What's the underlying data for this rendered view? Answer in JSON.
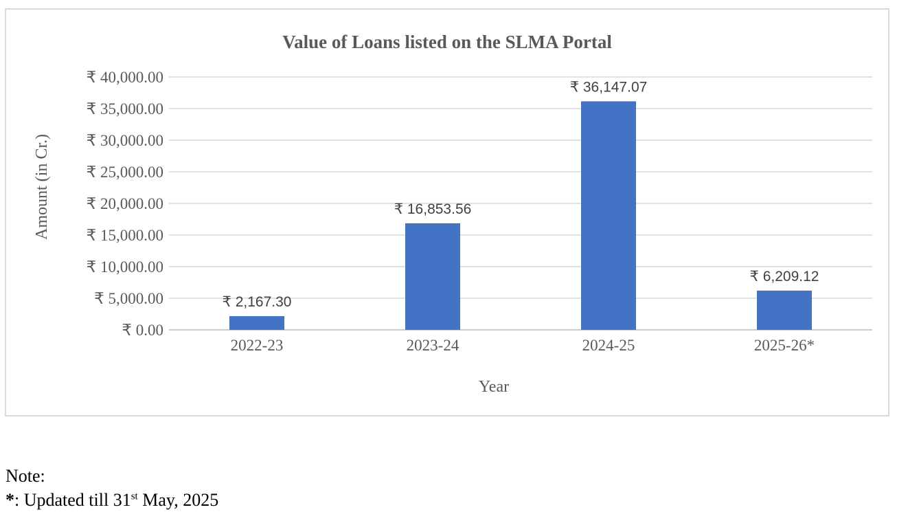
{
  "chart_data": {
    "type": "bar",
    "title": "Value of Loans listed on the SLMA Portal",
    "xlabel": "Year",
    "ylabel": "Amount (in Cr.)",
    "categories": [
      "2022-23",
      "2023-24",
      "2024-25",
      "2025-26*"
    ],
    "values": [
      2167.3,
      16853.56,
      36147.07,
      6209.12
    ],
    "data_labels": [
      "₹ 2,167.30",
      "₹ 16,853.56",
      "₹ 36,147.07",
      "₹ 6,209.12"
    ],
    "ylim": [
      0,
      40000
    ],
    "yticks": [
      0,
      5000,
      10000,
      15000,
      20000,
      25000,
      30000,
      35000,
      40000
    ],
    "ytick_labels": [
      "₹ 0.00",
      "₹ 5,000.00",
      "₹ 10,000.00",
      "₹ 15,000.00",
      "₹ 20,000.00",
      "₹ 25,000.00",
      "₹ 30,000.00",
      "₹ 35,000.00",
      "₹ 40,000.00"
    ],
    "grid": true,
    "legend": "none",
    "bar_color": "#4472c4"
  },
  "note": {
    "heading": "Note:",
    "marker": "*",
    "text_before": ": Updated till 31",
    "superscript": "st",
    "text_after": " May, 2025"
  }
}
